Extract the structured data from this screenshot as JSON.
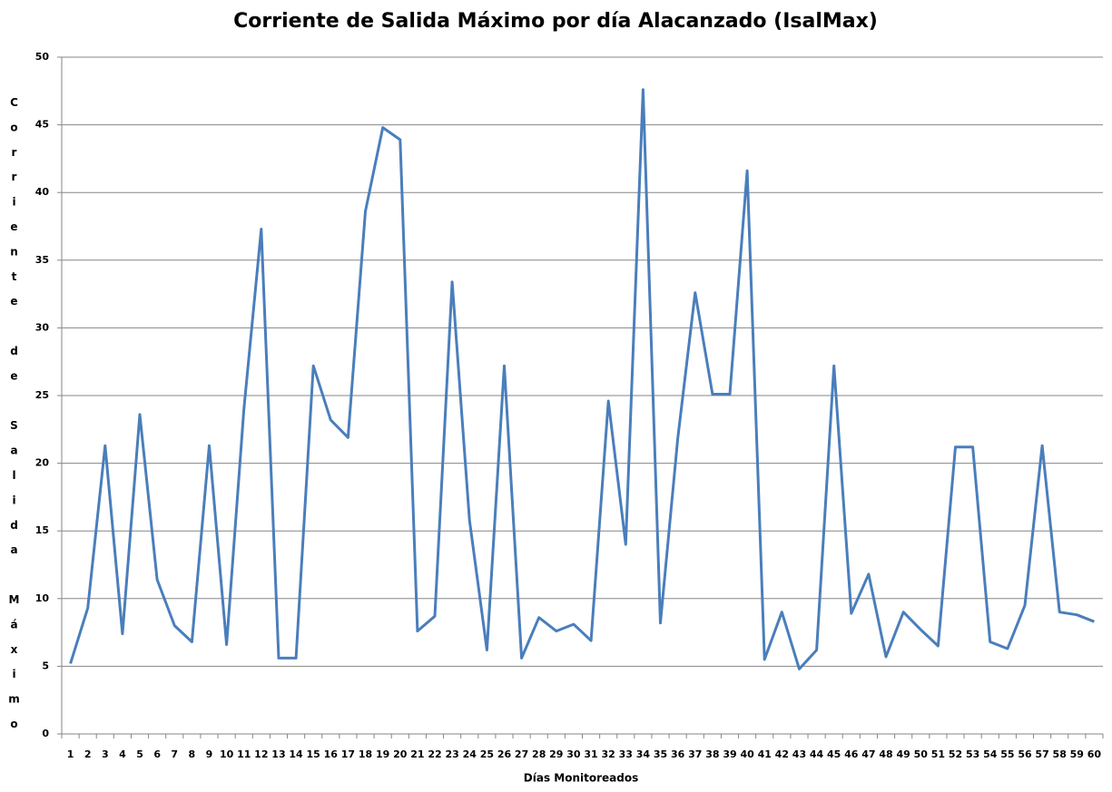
{
  "chart_data": {
    "type": "line",
    "title": "Corriente de Salida Máximo por día Alacanzado (IsalMax)",
    "x_label": "Días Monitoreados",
    "y_label": "Corriente de Salida Máximo",
    "categories": [
      "1",
      "2",
      "3",
      "4",
      "5",
      "6",
      "7",
      "8",
      "9",
      "10",
      "11",
      "12",
      "13",
      "14",
      "15",
      "16",
      "17",
      "18",
      "19",
      "20",
      "21",
      "22",
      "23",
      "24",
      "25",
      "26",
      "27",
      "28",
      "29",
      "30",
      "31",
      "32",
      "33",
      "34",
      "35",
      "36",
      "37",
      "38",
      "39",
      "40",
      "41",
      "42",
      "43",
      "44",
      "45",
      "46",
      "47",
      "48",
      "49",
      "50",
      "51",
      "52",
      "53",
      "54",
      "55",
      "56",
      "57",
      "58",
      "59",
      "60"
    ],
    "series": [
      {
        "name": "IsalMax",
        "color": "#4a7ebb",
        "values": [
          5.2,
          9.3,
          21.3,
          7.4,
          23.6,
          11.4,
          8.0,
          6.8,
          21.3,
          6.6,
          24.0,
          37.3,
          5.6,
          5.6,
          27.2,
          23.2,
          21.9,
          38.6,
          44.8,
          43.9,
          7.6,
          8.7,
          33.4,
          15.8,
          6.2,
          27.2,
          5.6,
          8.6,
          7.6,
          8.1,
          6.9,
          24.6,
          14.0,
          47.6,
          8.2,
          21.8,
          32.6,
          25.1,
          25.1,
          41.6,
          5.5,
          9.0,
          4.8,
          6.2,
          27.2,
          8.9,
          11.8,
          5.7,
          9.0,
          7.7,
          6.5,
          21.2,
          21.2,
          6.8,
          6.3,
          9.5,
          21.3,
          9.0,
          8.8,
          8.3
        ]
      }
    ],
    "ylim": [
      0,
      50
    ],
    "yticks": [
      0,
      5,
      10,
      15,
      20,
      25,
      30,
      35,
      40,
      45,
      50
    ],
    "grid": true
  }
}
